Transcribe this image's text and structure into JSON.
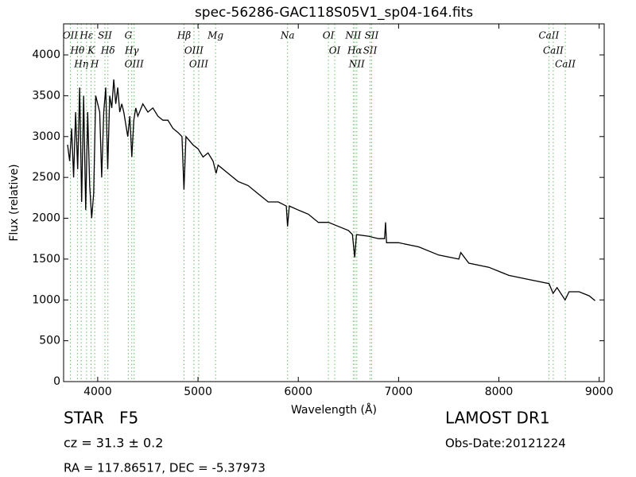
{
  "chart_data": {
    "type": "line",
    "title": "spec-56286-GAC118S05V1_sp04-164.fits",
    "x_label": "Wavelength (Å)",
    "y_label": "Flux (relative)",
    "color": "#000000",
    "line_color": "#66bb66",
    "xlim": [
      3660,
      9050
    ],
    "xticks": [
      4000,
      5000,
      6000,
      7000,
      8000,
      9000
    ],
    "ylim": [
      0,
      4380
    ],
    "yticks": [
      0,
      500,
      1000,
      1500,
      2000,
      2500,
      3000,
      3500,
      4000
    ],
    "x": [
      3700,
      3720,
      3740,
      3760,
      3780,
      3800,
      3820,
      3840,
      3860,
      3880,
      3900,
      3920,
      3940,
      3960,
      3980,
      4000,
      4020,
      4040,
      4060,
      4080,
      4100,
      4120,
      4140,
      4160,
      4180,
      4200,
      4220,
      4240,
      4260,
      4280,
      4300,
      4320,
      4340,
      4360,
      4380,
      4400,
      4450,
      4500,
      4550,
      4600,
      4650,
      4700,
      4750,
      4800,
      4840,
      4860,
      4880,
      4950,
      5000,
      5050,
      5100,
      5150,
      5180,
      5200,
      5300,
      5400,
      5500,
      5600,
      5700,
      5800,
      5880,
      5893,
      5910,
      6000,
      6100,
      6200,
      6300,
      6400,
      6500,
      6540,
      6563,
      6580,
      6700,
      6800,
      6860,
      6870,
      6880,
      7000,
      7200,
      7400,
      7600,
      7620,
      7700,
      7900,
      8100,
      8300,
      8500,
      8540,
      8580,
      8660,
      8700,
      8800,
      8900,
      8960
    ],
    "values": [
      2900,
      2700,
      3100,
      2500,
      3300,
      2600,
      3600,
      2200,
      3500,
      2100,
      3300,
      2400,
      2000,
      2300,
      3500,
      3400,
      3300,
      2500,
      3300,
      3600,
      2600,
      3500,
      3350,
      3700,
      3400,
      3600,
      3300,
      3400,
      3300,
      3150,
      3000,
      3250,
      2750,
      3200,
      3350,
      3250,
      3400,
      3300,
      3350,
      3250,
      3200,
      3200,
      3100,
      3050,
      3000,
      2350,
      3000,
      2900,
      2850,
      2750,
      2800,
      2700,
      2550,
      2650,
      2550,
      2450,
      2400,
      2300,
      2200,
      2200,
      2150,
      1900,
      2150,
      2100,
      2050,
      1950,
      1950,
      1900,
      1850,
      1800,
      1520,
      1800,
      1780,
      1750,
      1750,
      1950,
      1700,
      1700,
      1650,
      1550,
      1500,
      1580,
      1450,
      1400,
      1300,
      1250,
      1200,
      1080,
      1150,
      1000,
      1100,
      1100,
      1050,
      990
    ],
    "spectral_lines": [
      {
        "label": "OII",
        "wavelength": 3727
      },
      {
        "label": "Hθ",
        "wavelength": 3798
      },
      {
        "label": "Hη",
        "wavelength": 3835
      },
      {
        "label": "Hε",
        "wavelength": 3889
      },
      {
        "label": "K",
        "wavelength": 3934
      },
      {
        "label": "H",
        "wavelength": 3970
      },
      {
        "label": "SII",
        "wavelength": 4072
      },
      {
        "label": "Hδ",
        "wavelength": 4102
      },
      {
        "label": "G",
        "wavelength": 4305
      },
      {
        "label": "Hγ",
        "wavelength": 4340
      },
      {
        "label": "OIII",
        "wavelength": 4363
      },
      {
        "label": "Hβ",
        "wavelength": 4861
      },
      {
        "label": "OIII",
        "wavelength": 4959
      },
      {
        "label": "OIII",
        "wavelength": 5007
      },
      {
        "label": "Mg",
        "wavelength": 5175
      },
      {
        "label": "Na",
        "wavelength": 5893
      },
      {
        "label": "OI",
        "wavelength": 6300
      },
      {
        "label": "OI",
        "wavelength": 6363
      },
      {
        "label": "NII",
        "wavelength": 6548
      },
      {
        "label": "Hα",
        "wavelength": 6563
      },
      {
        "label": "NII",
        "wavelength": 6583
      },
      {
        "label": "SII",
        "wavelength": 6716
      },
      {
        "label": "SII",
        "wavelength": 6731
      },
      {
        "label": "CaII",
        "wavelength": 8498
      },
      {
        "label": "CaII",
        "wavelength": 8542
      },
      {
        "label": "CaII",
        "wavelength": 8662
      }
    ],
    "footer": {
      "class": "STAR   F5",
      "cz": "cz = 31.3 ± 0.2",
      "coords": "RA = 117.86517, DEC = -5.37973",
      "survey": "LAMOST DR1",
      "date": "Obs-Date:20121224"
    }
  }
}
